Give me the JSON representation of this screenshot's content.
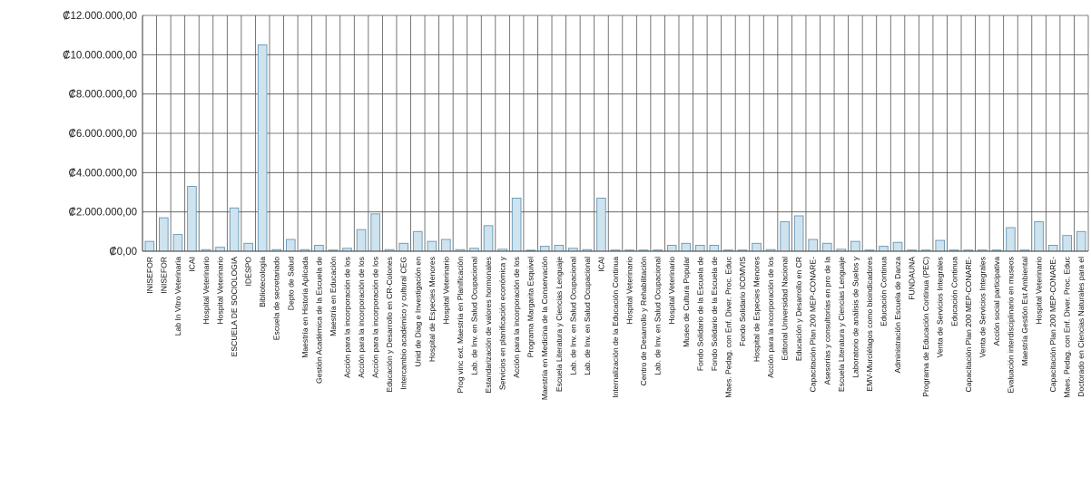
{
  "chart_data": {
    "type": "bar",
    "title": "",
    "xlabel": "",
    "ylabel": "",
    "ylim": [
      0,
      12000000
    ],
    "yticks": [
      0,
      2000000,
      4000000,
      6000000,
      8000000,
      10000000,
      12000000
    ],
    "ytick_labels": [
      "₡0,00",
      "₡2.000.000,00",
      "₡4.000.000,00",
      "₡6.000.000,00",
      "₡8.000.000,00",
      "₡10.000.000,00",
      "₡12.000.000,00"
    ],
    "grid": true,
    "colors": {
      "bar_fill": "#cfe3ef",
      "bar_stroke": "#6f9fbd",
      "grid": "#555555"
    },
    "categories": [
      "INISEFOR",
      "INISEFOR",
      "Lab In Vitro Veterinaria",
      "ICAI",
      "Hospital Veterinario",
      "Hospital Veterinario",
      "ESCUELA DE SOCIOLOGIA",
      "IDESPO",
      "Bibliotecología",
      "Escuela de secretariado",
      "Depto de Salud",
      "Maestría en Historia Aplicada",
      "Gestión Académica de la Escuela de",
      "Maestría en Educación",
      "Acción para la incorporación de los",
      "Acción para la incorporación de los",
      "Acción para la incorporación de los",
      "Educación y Desarrollo en CR-Colones",
      "Intercambio académico y cultural CEG",
      "Unid de Diag e Investigación en",
      "Hospital de Especies Menores",
      "Hospital Veterinario",
      "Prog vinc ext. Maestría en Planificación",
      "Lab. de Inv. en Salud Ocupacional",
      "Estandarización de valores hormonales",
      "Servicios en planificación económica y",
      "Acción para la incorporación de los",
      "Programa Margarita Esquivel",
      "Maestría en Medicina de la Conservación",
      "Escuela Literatura y Ciencias Lenguaje",
      "Lab. de Inv. en Salud Ocupacional",
      "Lab. de Inv. en Salud Ocupacional",
      "ICAI",
      "Internalización de la Educación Continua",
      "Hospital Veterinario",
      "Centro de Desarrollo y Rehabilitación",
      "Lab. de Inv. en Salud Ocupacional",
      "Hospital Veterinario",
      "Museo de Cultura Popular",
      "Fondo Solidario de la Escuela de",
      "Fondo Solidario de la Escuela de",
      "Maes. Pedag. con Enf. Diver. Proc. Educ",
      "Fondo Solidario ICOMVIS",
      "Hospital de Especies Menores",
      "Acción para la incorporación de los",
      "Editorial Universidad Nacional",
      "Educación y Desarrollo en CR",
      "Capacitación Plan 200 MEP-CONARE-",
      "Asesorías y consultorías en pro de la",
      "Escuela Literatura y Ciencias Lenguaje",
      "Laboratorio de análisis de Suelos y",
      "EMV-Murciélagos como bioindicadores",
      "Educación Continua",
      "Administración Escuela de Danza",
      "FUNDAUNA",
      "Programa de Educación Continua (PEC)",
      "Venta de Servicios Integrales",
      "Educación Continua",
      "Capacitación Plan 200 MEP-CONARE-",
      "Venta de Servicios Integrales",
      "Acción social participativa",
      "Evaluación interdisciplinario en museos",
      "Maestría Gestión Est Ambiental",
      "Hospital Veterinario",
      "Capacitación Plan 200 MEP-CONARE-",
      "Maes. Pedag. con Enf. Diver. Proc. Educ",
      "Doctorado en Ciencias Naturales para el"
    ],
    "values": [
      500000,
      1700000,
      850000,
      3300000,
      80000,
      200000,
      2200000,
      400000,
      10500000,
      80000,
      600000,
      80000,
      300000,
      60000,
      150000,
      1100000,
      1900000,
      80000,
      400000,
      1000000,
      500000,
      600000,
      80000,
      150000,
      1300000,
      100000,
      2700000,
      50000,
      250000,
      300000,
      150000,
      80000,
      2700000,
      60000,
      60000,
      60000,
      60000,
      300000,
      400000,
      300000,
      300000,
      60000,
      60000,
      400000,
      80000,
      1500000,
      1800000,
      600000,
      400000,
      100000,
      500000,
      60000,
      250000,
      450000,
      60000,
      60000,
      550000,
      60000,
      60000,
      60000,
      60000,
      1200000,
      60000,
      1500000,
      300000,
      800000,
      1000000
    ]
  }
}
